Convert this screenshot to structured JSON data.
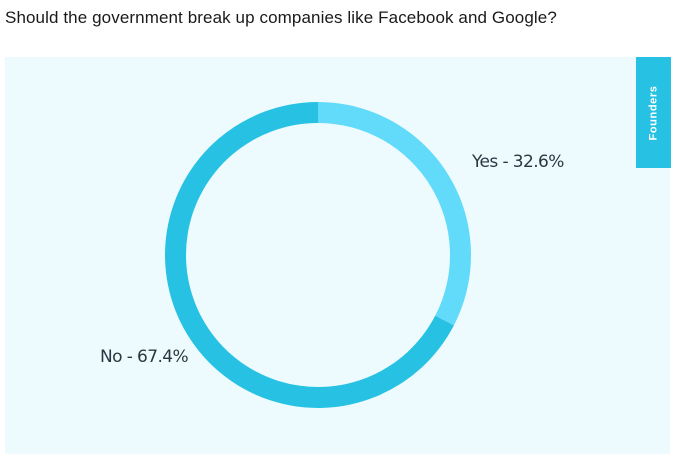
{
  "page": {
    "title": "Should the government break up companies like Facebook and Google?"
  },
  "side_tab": {
    "label": "Founders"
  },
  "colors": {
    "panel_bg": "#eefbfe",
    "yes": "#62dbfa",
    "no": "#27c2e3",
    "tab_bg": "#27c2e3",
    "label_text": "#2a3742"
  },
  "chart_data": {
    "type": "pie",
    "style": "donut",
    "title": "Should the government break up companies like Facebook and Google?",
    "slices": [
      {
        "name": "Yes",
        "value": 32.6,
        "unit": "%",
        "label": "Yes - 32.6%"
      },
      {
        "name": "No",
        "value": 67.4,
        "unit": "%",
        "label": "No - 67.4%"
      }
    ],
    "start": "top",
    "direction": "clockwise",
    "legend": "none"
  }
}
